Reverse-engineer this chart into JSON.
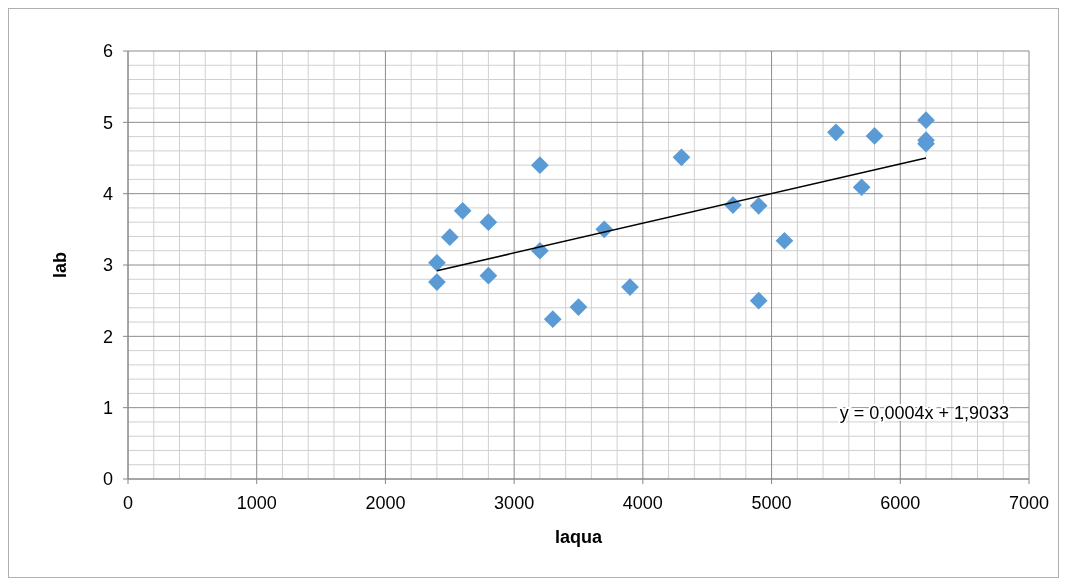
{
  "chart_data": {
    "type": "scatter",
    "xlabel": "laqua",
    "ylabel": "lab",
    "xlim": [
      0,
      7000
    ],
    "ylim": [
      0,
      6
    ],
    "xticks": [
      0,
      1000,
      2000,
      3000,
      4000,
      5000,
      6000,
      7000
    ],
    "yticks": [
      0,
      1,
      2,
      3,
      4,
      5,
      6
    ],
    "grid": true,
    "marker": "diamond",
    "annotations": [
      "y = 0,0004x + 1,9033"
    ],
    "series": [
      {
        "color": "#5b9bd5",
        "x": [
          2400,
          2400,
          2500,
          2600,
          2800,
          2800,
          3200,
          3200,
          3300,
          3500,
          3700,
          3900,
          4300,
          4700,
          4900,
          4900,
          5100,
          5500,
          5700,
          5800,
          6200,
          6200,
          6200
        ],
        "values": [
          3.03,
          2.76,
          3.39,
          3.76,
          3.6,
          2.85,
          4.4,
          3.2,
          2.24,
          2.41,
          3.5,
          2.69,
          4.51,
          3.84,
          3.83,
          2.5,
          3.34,
          4.86,
          4.09,
          4.81,
          5.03,
          4.75,
          4.7
        ]
      },
      {
        "type": "line",
        "color": "#000000",
        "marker": "none",
        "line_style": "solid",
        "x": [
          2400,
          6200
        ],
        "values": [
          2.92,
          4.5
        ]
      }
    ]
  }
}
